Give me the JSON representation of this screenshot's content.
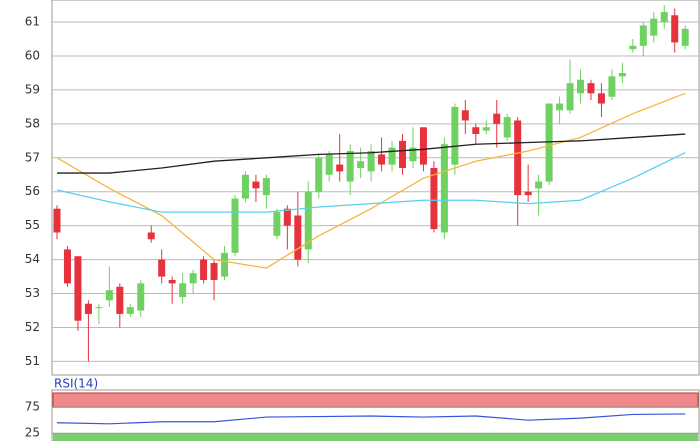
{
  "chart_data": [
    {
      "type": "candlestick",
      "ylim": [
        50.6,
        61.65
      ],
      "yticks": [
        51,
        52,
        53,
        54,
        55,
        56,
        57,
        58,
        59,
        60,
        61
      ],
      "grid": true,
      "up_color": "#6fd161",
      "down_color": "#e5323d",
      "open": [
        55.5,
        54.3,
        54.1,
        52.7,
        52.6,
        52.8,
        53.2,
        52.4,
        52.5,
        54.8,
        54.0,
        53.4,
        52.9,
        53.3,
        54.0,
        53.9,
        53.5,
        54.2,
        55.8,
        56.3,
        55.9,
        54.7,
        55.5,
        55.3,
        54.3,
        56.0,
        56.5,
        56.8,
        56.3,
        56.7,
        56.6,
        57.1,
        56.8,
        57.5,
        56.9,
        57.9,
        56.7,
        54.8,
        56.8,
        58.4,
        57.9,
        57.8,
        58.3,
        57.6,
        58.1,
        56.0,
        56.1,
        56.3,
        58.4,
        58.4,
        58.9,
        59.2,
        58.9,
        58.8,
        59.4,
        60.2,
        60.3,
        60.6,
        61.0,
        61.2,
        60.3
      ],
      "high": [
        55.6,
        54.4,
        54.1,
        52.8,
        52.7,
        53.8,
        53.3,
        52.7,
        53.4,
        55.0,
        54.3,
        53.5,
        53.6,
        53.7,
        54.1,
        54.0,
        54.4,
        55.9,
        56.6,
        56.5,
        56.5,
        55.5,
        55.6,
        56.0,
        56.3,
        57.1,
        57.2,
        57.7,
        57.4,
        57.3,
        57.4,
        57.6,
        57.5,
        57.7,
        57.9,
        57.9,
        56.9,
        57.6,
        58.6,
        58.7,
        58.0,
        58.1,
        58.7,
        58.3,
        58.2,
        56.8,
        56.5,
        58.6,
        58.8,
        59.9,
        59.6,
        59.3,
        59.2,
        59.6,
        59.8,
        60.5,
        61.0,
        61.3,
        61.5,
        61.4,
        60.9
      ],
      "low": [
        54.6,
        53.2,
        51.9,
        51.0,
        52.1,
        52.6,
        52.0,
        52.3,
        52.3,
        54.5,
        53.3,
        52.7,
        52.7,
        53.0,
        53.3,
        52.8,
        53.4,
        54.1,
        55.7,
        55.7,
        55.5,
        54.6,
        54.3,
        53.8,
        53.9,
        55.8,
        56.3,
        56.3,
        55.9,
        56.4,
        56.3,
        56.6,
        56.6,
        56.5,
        56.7,
        56.6,
        54.8,
        54.6,
        56.5,
        57.7,
        57.4,
        57.7,
        57.3,
        57.5,
        55.0,
        55.7,
        55.3,
        56.2,
        58.0,
        58.3,
        58.6,
        58.7,
        58.2,
        58.7,
        59.2,
        60.1,
        60.0,
        60.4,
        60.8,
        60.1,
        60.2
      ],
      "close": [
        54.8,
        53.3,
        52.2,
        52.4,
        52.6,
        53.1,
        52.4,
        52.6,
        53.3,
        54.6,
        53.5,
        53.3,
        53.3,
        53.6,
        53.4,
        53.4,
        54.2,
        55.8,
        56.5,
        56.1,
        56.4,
        55.4,
        55.0,
        54.0,
        56.0,
        57.0,
        57.1,
        56.6,
        57.2,
        56.9,
        57.2,
        56.8,
        57.3,
        56.7,
        57.3,
        56.8,
        54.9,
        57.4,
        58.5,
        58.1,
        57.7,
        57.9,
        58.0,
        58.2,
        55.9,
        55.9,
        56.3,
        58.6,
        58.6,
        59.2,
        59.3,
        58.9,
        58.6,
        59.4,
        59.5,
        60.3,
        60.9,
        61.1,
        61.3,
        60.4,
        60.8
      ],
      "lines": [
        {
          "color": "#f4b63f",
          "x": [
            0,
            5,
            10,
            15,
            20,
            25,
            30,
            35,
            40,
            45,
            50,
            55,
            60
          ],
          "values": [
            57.0,
            56.1,
            55.3,
            54.0,
            53.75,
            54.7,
            55.5,
            56.4,
            56.9,
            57.2,
            57.6,
            58.3,
            58.9
          ]
        },
        {
          "color": "#222222",
          "x": [
            0,
            5,
            10,
            15,
            20,
            25,
            30,
            35,
            40,
            45,
            50,
            55,
            60
          ],
          "values": [
            56.55,
            56.55,
            56.7,
            56.9,
            57.0,
            57.1,
            57.15,
            57.25,
            57.4,
            57.45,
            57.5,
            57.6,
            57.7
          ]
        },
        {
          "color": "#5ad0ee",
          "x": [
            0,
            5,
            10,
            15,
            20,
            25,
            30,
            35,
            40,
            45,
            50,
            55,
            60
          ],
          "values": [
            56.05,
            55.7,
            55.4,
            55.4,
            55.4,
            55.55,
            55.65,
            55.75,
            55.75,
            55.65,
            55.75,
            56.4,
            57.15
          ]
        }
      ]
    },
    {
      "type": "line",
      "title": "RSI(14)",
      "ylim": [
        10,
        108
      ],
      "yticks": [
        25,
        75
      ],
      "color": "#3355dd",
      "x": [
        0,
        5,
        10,
        15,
        20,
        25,
        30,
        35,
        40,
        45,
        50,
        55,
        60
      ],
      "values": [
        45,
        43,
        47,
        47,
        56,
        57,
        58,
        56,
        58,
        50,
        54,
        61,
        62
      ]
    }
  ]
}
